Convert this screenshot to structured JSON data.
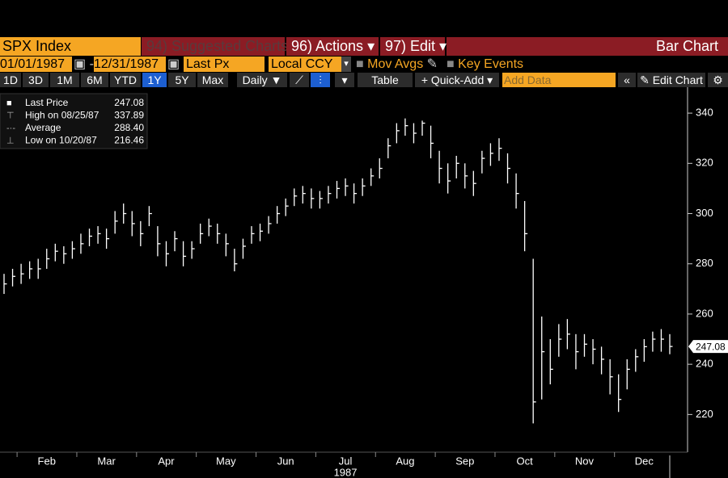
{
  "toolbar": {
    "security": "SPX Index",
    "suggested": "94) Suggested Charts",
    "actions": "96) Actions",
    "edit": "97) Edit",
    "chart_type": "Bar Chart",
    "start_date": "01/01/1987",
    "end_date": "12/31/1987",
    "field": "Last Px",
    "currency": "Local CCY",
    "mov_avgs": "Mov Avgs",
    "key_events": "Key Events",
    "periods": [
      "1D",
      "3D",
      "1M",
      "6M",
      "YTD",
      "1Y",
      "5Y",
      "Max"
    ],
    "frequency": "Daily",
    "table": "Table",
    "quick_add": "+ Quick-Add",
    "add_data": "Add Data",
    "edit_chart": "Edit Chart"
  },
  "chart_data": {
    "type": "hlc",
    "color": "#ffffff",
    "stats": [
      {
        "name": "Last Price",
        "value": "247.08"
      },
      {
        "name": "High on 08/25/87",
        "value": "337.89"
      },
      {
        "name": "Average",
        "value": "288.40"
      },
      {
        "name": "Low on 10/20/87",
        "value": "216.46"
      }
    ],
    "year": "1987",
    "categories": [
      null,
      null,
      null,
      null,
      null,
      "Feb",
      null,
      null,
      null,
      null,
      null,
      null,
      "Mar",
      null,
      null,
      null,
      null,
      null,
      null,
      "Apr",
      null,
      null,
      null,
      null,
      null,
      null,
      "May",
      null,
      null,
      null,
      null,
      null,
      null,
      "Jun",
      null,
      null,
      null,
      null,
      null,
      null,
      "Jul",
      null,
      null,
      null,
      null,
      null,
      null,
      "Aug",
      null,
      null,
      null,
      null,
      null,
      null,
      "Sep",
      null,
      null,
      null,
      null,
      null,
      null,
      "Oct",
      null,
      null,
      null,
      null,
      null,
      null,
      "Nov",
      null,
      null,
      null,
      null,
      null,
      null,
      "Dec",
      null,
      null,
      null
    ],
    "high": [
      276,
      278,
      280,
      281,
      282,
      286,
      288,
      287,
      289,
      292,
      294,
      295,
      294,
      301,
      304,
      301,
      297,
      303,
      295,
      289,
      293,
      289,
      289,
      296,
      298,
      296,
      292,
      286,
      290,
      295,
      296,
      299,
      303,
      306,
      310,
      311,
      310,
      309,
      311,
      313,
      314,
      312,
      314,
      318,
      322,
      330,
      336,
      337.89,
      336,
      337,
      335,
      325,
      320,
      323,
      320,
      317,
      325,
      328,
      330,
      324,
      316,
      305,
      282,
      259,
      250,
      256,
      258,
      252,
      252,
      250,
      247,
      242,
      236,
      242,
      246,
      250,
      253,
      254,
      252
    ],
    "low": [
      268,
      271,
      272,
      274,
      274,
      278,
      281,
      280,
      282,
      284,
      287,
      288,
      286,
      292,
      296,
      291,
      287,
      295,
      283,
      279,
      285,
      279,
      282,
      288,
      291,
      288,
      283,
      277,
      282,
      288,
      289,
      292,
      296,
      299,
      303,
      304,
      302,
      302,
      304,
      306,
      307,
      304,
      307,
      311,
      314,
      322,
      328,
      331,
      328,
      331,
      322,
      312,
      308,
      314,
      310,
      307,
      316,
      319,
      321,
      312,
      302,
      285,
      216.46,
      226,
      232,
      243,
      246,
      238,
      243,
      240,
      236,
      228,
      221,
      230,
      237,
      241,
      245,
      245,
      244
    ],
    "close": [
      272,
      275,
      276,
      278,
      278,
      282,
      285,
      284,
      286,
      288,
      291,
      292,
      290,
      297,
      300,
      296,
      292,
      300,
      288,
      284,
      290,
      283,
      286,
      292,
      295,
      292,
      288,
      280,
      287,
      292,
      293,
      296,
      300,
      303,
      307,
      308,
      306,
      306,
      308,
      310,
      311,
      308,
      311,
      315,
      318,
      327,
      333,
      335,
      332,
      336,
      328,
      318,
      313,
      320,
      315,
      312,
      322,
      324,
      326,
      318,
      308,
      292,
      225,
      245,
      238,
      250,
      252,
      245,
      248,
      246,
      242,
      235,
      226,
      238,
      243,
      247,
      250,
      250,
      247.08
    ],
    "ylim": [
      205,
      350
    ],
    "yticks": [
      220,
      240,
      260,
      280,
      300,
      320,
      340
    ]
  }
}
